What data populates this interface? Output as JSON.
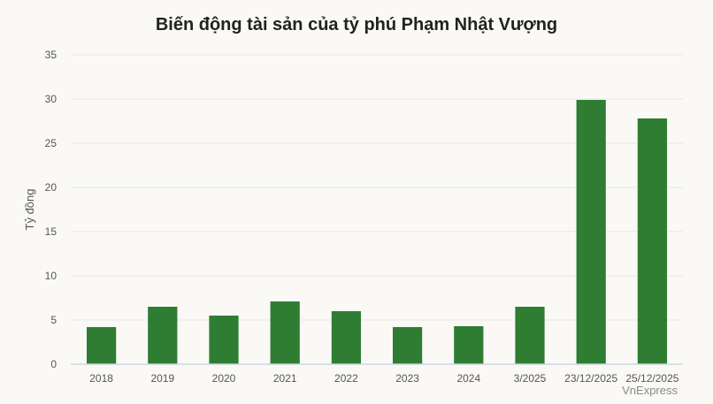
{
  "chart_data": {
    "type": "bar",
    "title": "Biến động tài sản của tỷ phú Phạm Nhật Vượng",
    "xlabel": "",
    "ylabel": "Tỷ đồng",
    "categories": [
      "2018",
      "2019",
      "2020",
      "2021",
      "2022",
      "2023",
      "2024",
      "3/2025",
      "23/12/2025",
      "25/12/2025"
    ],
    "values": [
      4.2,
      6.5,
      5.5,
      7.1,
      6.0,
      4.2,
      4.3,
      6.5,
      29.9,
      27.8
    ],
    "ylim": [
      0,
      35
    ],
    "yticks": [
      0,
      5,
      10,
      15,
      20,
      25,
      30,
      35
    ],
    "grid": true,
    "legend": "none",
    "bar_color": "#2e7d32"
  },
  "credit": "VnExpress"
}
